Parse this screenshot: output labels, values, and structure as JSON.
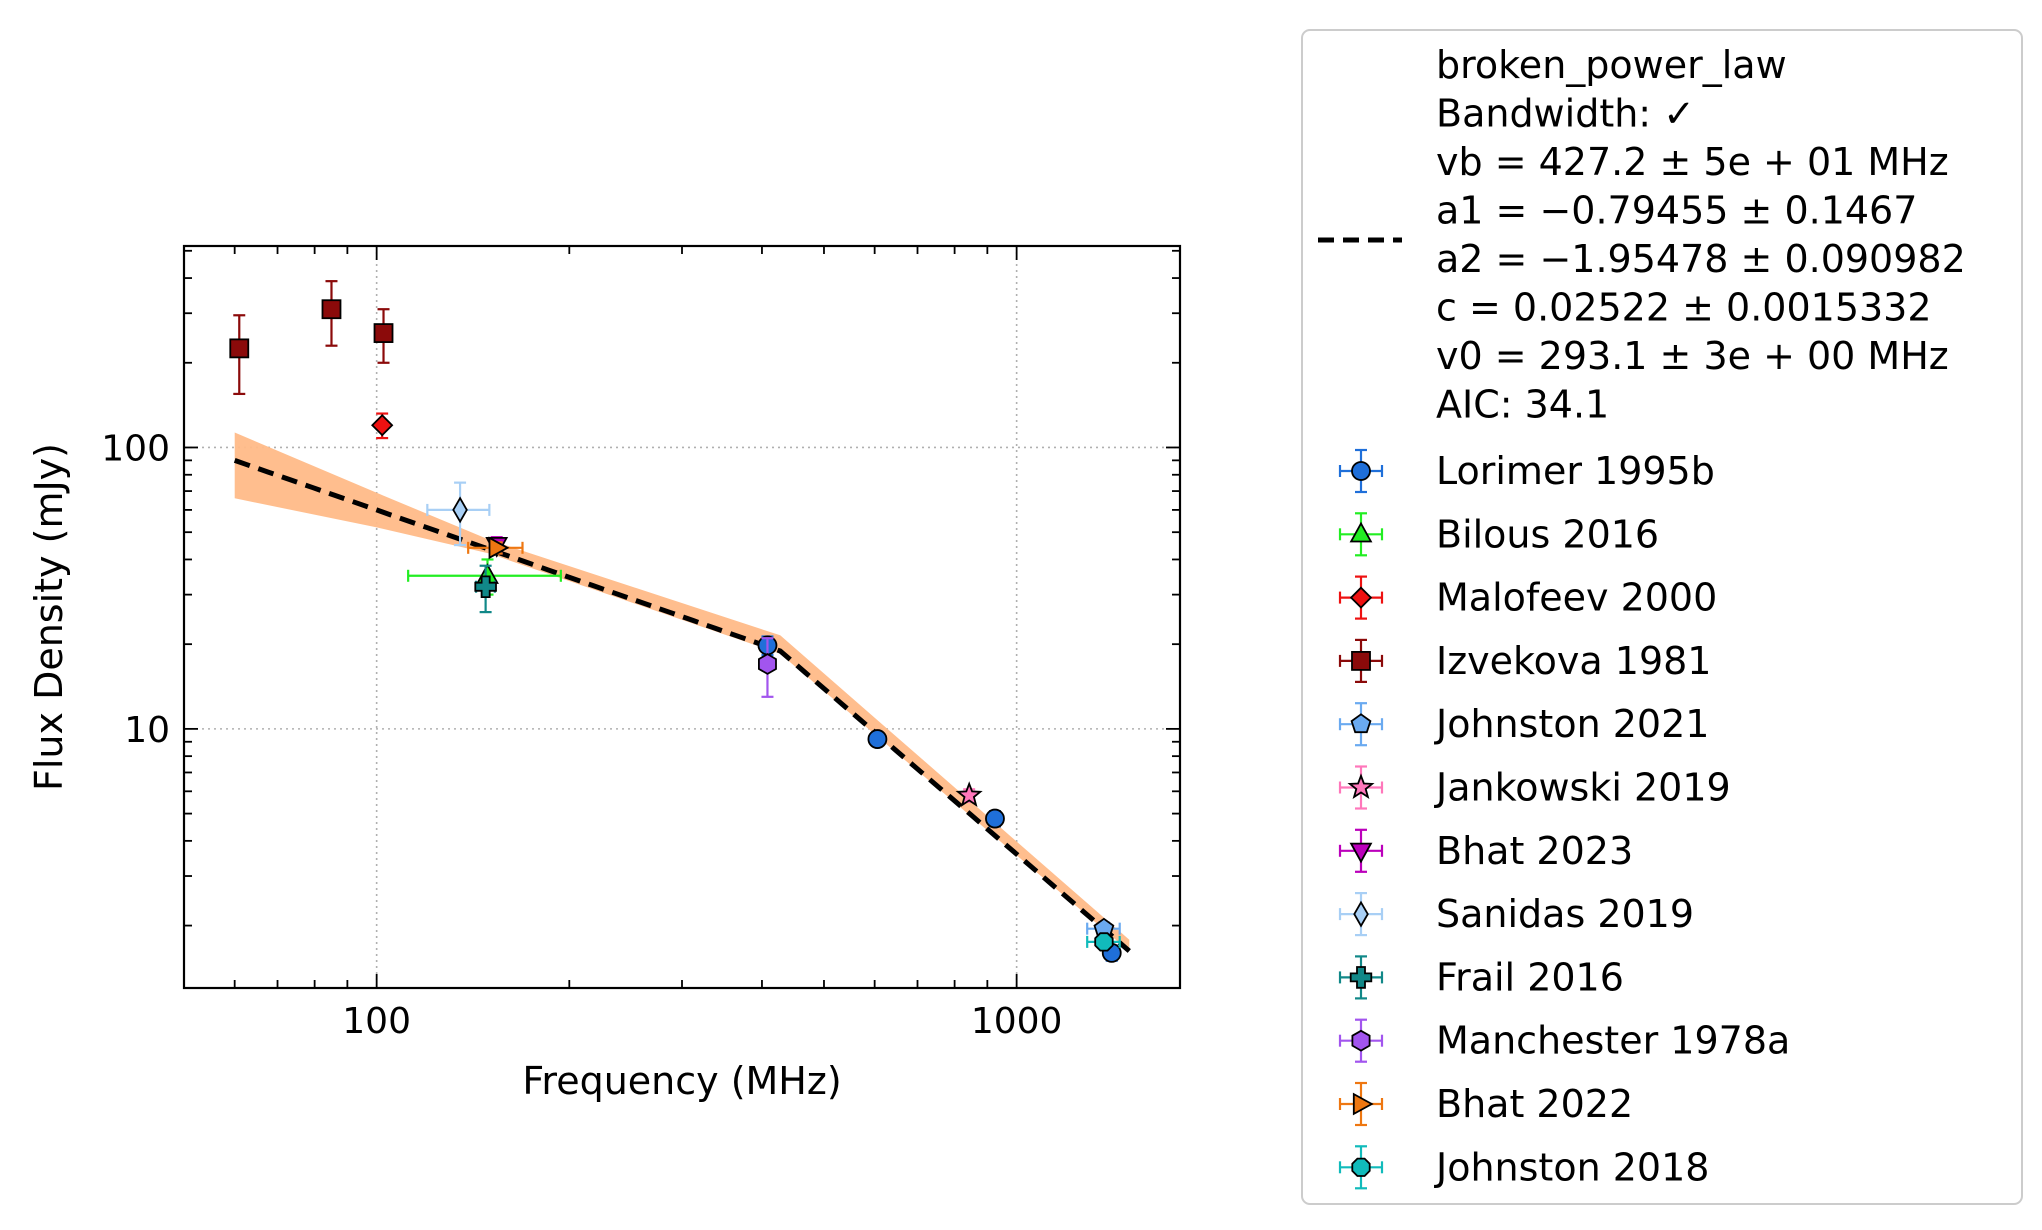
{
  "chart_data": {
    "type": "scatter",
    "xlabel": "Frequency (MHz)",
    "ylabel": "Flux Density (mJy)",
    "xscale": "log",
    "yscale": "log",
    "xlim": [
      50,
      1800
    ],
    "ylim": [
      1.2,
      520
    ],
    "grid": true,
    "legend_position": "outside-right",
    "x_ticks": [
      {
        "value": 100,
        "label": "100"
      },
      {
        "value": 1000,
        "label": "1000"
      }
    ],
    "y_ticks": [
      {
        "value": 10,
        "label": "10"
      },
      {
        "value": 100,
        "label": "100"
      }
    ],
    "fit": {
      "name": "broken_power_law",
      "legend_lines": [
        "broken_power_law",
        "Bandwidth: ✓",
        "vb = 427.2 ± 5e + 01 MHz",
        "a1 = −0.79455 ± 0.1467",
        "a2 = −1.95478 ± 0.090982",
        "c = 0.02522 ± 0.0015332",
        "v0 = 293.1 ± 3e + 00 MHz",
        "AIC: 34.1"
      ],
      "vb": 427.2,
      "a1": -0.79455,
      "a2": -1.95478,
      "c": 0.02522,
      "v0": 293.1,
      "x_range": [
        60,
        1500
      ],
      "band": [
        {
          "x": 60,
          "lo": 66,
          "hi": 113
        },
        {
          "x": 100,
          "lo": 52,
          "hi": 69
        },
        {
          "x": 150,
          "lo": 42,
          "hi": 47
        },
        {
          "x": 427.2,
          "lo": 18.5,
          "hi": 21.5
        },
        {
          "x": 1500,
          "lo": 1.62,
          "hi": 1.78
        }
      ],
      "line_color": "#000000",
      "band_color": "#ffbb88"
    },
    "series": [
      {
        "name": "Lorimer 1995b",
        "marker": "circle",
        "color": "#1f6fd9",
        "points": [
          {
            "x": 408,
            "y": 19.8,
            "yerr": 1.5
          },
          {
            "x": 606,
            "y": 9.2,
            "yerr": 0.5
          },
          {
            "x": 925,
            "y": 4.8,
            "yerr": 0.3
          },
          {
            "x": 1408,
            "y": 1.6,
            "yerr": 0.1
          }
        ]
      },
      {
        "name": "Bilous 2016",
        "marker": "triangle-up",
        "color": "#22ee22",
        "points": [
          {
            "x": 149,
            "y": 35,
            "yerr": 5,
            "xerr": [
              37,
              45
            ]
          }
        ]
      },
      {
        "name": "Malofeev 2000",
        "marker": "diamond",
        "color": "#ee1111",
        "points": [
          {
            "x": 102,
            "y": 120,
            "yerr": 12
          }
        ]
      },
      {
        "name": "Izvekova 1981",
        "marker": "square",
        "color": "#8b0a0a",
        "points": [
          {
            "x": 61,
            "y": 225,
            "yerr": [
              70,
              70
            ]
          },
          {
            "x": 85,
            "y": 310,
            "yerr": [
              80,
              80
            ]
          },
          {
            "x": 102.5,
            "y": 255,
            "yerr": [
              55,
              55
            ]
          }
        ]
      },
      {
        "name": "Johnston 2021",
        "marker": "pentagon",
        "color": "#6aaaf0",
        "points": [
          {
            "x": 1369,
            "y": 1.95,
            "yerr": 0.1,
            "xerr": [
              80,
              80
            ]
          }
        ]
      },
      {
        "name": "Jankowski 2019",
        "marker": "star",
        "color": "#ff77bb",
        "points": [
          {
            "x": 843,
            "y": 5.8,
            "yerr": 0.3
          }
        ]
      },
      {
        "name": "Bhat 2023",
        "marker": "triangle-down",
        "color": "#bb00bb",
        "points": [
          {
            "x": 154,
            "y": 45,
            "yerr": 3
          }
        ]
      },
      {
        "name": "Sanidas 2019",
        "marker": "thin-diamond",
        "color": "#a8cff5",
        "points": [
          {
            "x": 135,
            "y": 60,
            "yerr": 15,
            "xerr": [
              15,
              15
            ]
          }
        ]
      },
      {
        "name": "Frail 2016",
        "marker": "plus-filled",
        "color": "#118888",
        "points": [
          {
            "x": 148,
            "y": 32,
            "yerr": 6,
            "xerr": [
              5,
              5
            ]
          }
        ]
      },
      {
        "name": "Manchester 1978a",
        "marker": "hexagon",
        "color": "#a255ee",
        "points": [
          {
            "x": 408,
            "y": 17,
            "yerr": 4
          }
        ]
      },
      {
        "name": "Bhat 2022",
        "marker": "triangle-right",
        "color": "#ee7711",
        "points": [
          {
            "x": 154,
            "y": 44,
            "yerr": 2,
            "xerr": [
              15,
              15
            ]
          }
        ]
      },
      {
        "name": "Johnston 2018",
        "marker": "octagon",
        "color": "#11bbbb",
        "points": [
          {
            "x": 1369,
            "y": 1.75,
            "yerr": 0.08,
            "xerr": [
              80,
              80
            ]
          }
        ]
      }
    ]
  }
}
